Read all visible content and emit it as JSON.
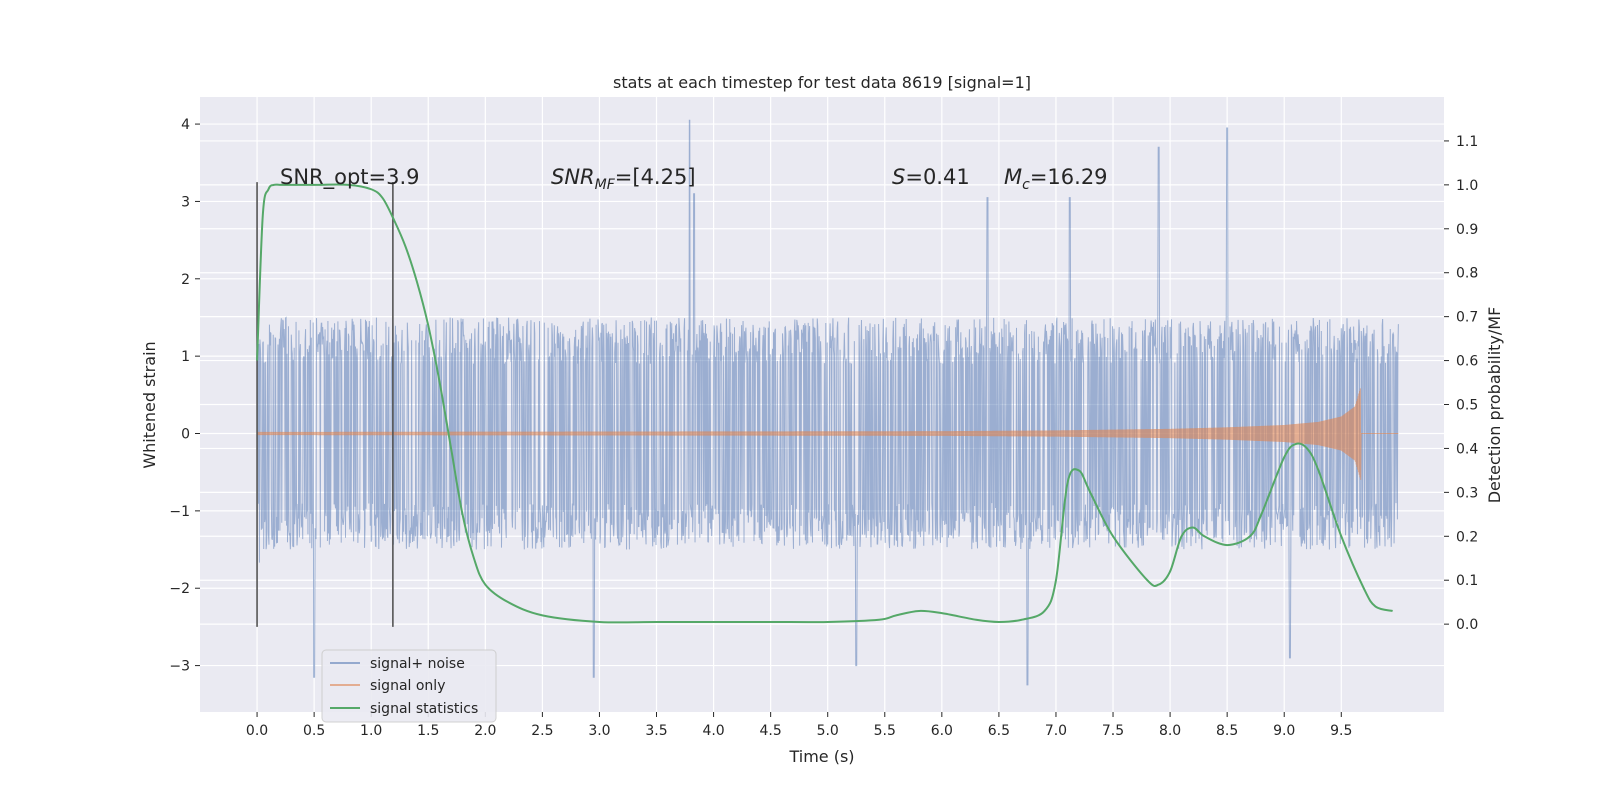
{
  "chart_data": {
    "type": "line",
    "title": "stats at each timestep for test data 8619 [signal=1]",
    "xlabel": "Time (s)",
    "ylabel": "Whitened strain",
    "ylabel_right": "Detection probability/MF",
    "xlim": [
      -0.5,
      10.4
    ],
    "ylim": [
      -3.6,
      4.35
    ],
    "ylim_right": [
      -0.2,
      1.2
    ],
    "x_ticks": [
      "0.0",
      "0.5",
      "1.0",
      "1.5",
      "2.0",
      "2.5",
      "3.0",
      "3.5",
      "4.0",
      "4.5",
      "5.0",
      "5.5",
      "6.0",
      "6.5",
      "7.0",
      "7.5",
      "8.0",
      "8.5",
      "9.0",
      "9.5"
    ],
    "y_ticks": [
      "−3",
      "−2",
      "−1",
      "0",
      "1",
      "2",
      "3",
      "4"
    ],
    "y_ticks_right": [
      "0.0",
      "0.1",
      "0.2",
      "0.3",
      "0.4",
      "0.5",
      "0.6",
      "0.7",
      "0.8",
      "0.9",
      "1.0",
      "1.1"
    ],
    "grid": true,
    "legend_position": "bottom-left",
    "annotations": {
      "snr_opt": "SNR_opt=3.9",
      "snr_mf_base": "SNR",
      "snr_mf_sub": "MF",
      "snr_mf_value": "=[4.25]",
      "s_sym": "S",
      "s_value": "=0.41",
      "mc_base": "M",
      "mc_sub": "c",
      "mc_value": "=16.29"
    },
    "vertical_lines": [
      0.0,
      1.19
    ],
    "series": [
      {
        "name": "signal+ noise",
        "color": "#4c72b0",
        "description_range": [
          0.0,
          10.0
        ],
        "envelope_core": [
          -1.5,
          1.5
        ],
        "peaks": [
          [
            3.79,
            4.05
          ],
          [
            8.5,
            3.95
          ],
          [
            3.83,
            3.1
          ],
          [
            7.9,
            3.7
          ],
          [
            7.12,
            3.05
          ],
          [
            6.4,
            3.05
          ]
        ],
        "troughs": [
          [
            2.95,
            -3.15
          ],
          [
            5.25,
            -3.0
          ],
          [
            6.75,
            -3.25
          ],
          [
            0.5,
            -3.15
          ],
          [
            9.05,
            -2.9
          ]
        ]
      },
      {
        "name": "signal only",
        "color": "#dd8452",
        "x": [
          0.0,
          6.0,
          7.0,
          8.0,
          8.5,
          9.0,
          9.3,
          9.5,
          9.62,
          9.67,
          9.7,
          10.0
        ],
        "amplitude": [
          0.02,
          0.03,
          0.04,
          0.06,
          0.08,
          0.11,
          0.15,
          0.22,
          0.35,
          0.6,
          0.0,
          0.0
        ]
      },
      {
        "name": "signal statistics",
        "color": "#55a868",
        "x": [
          0.0,
          0.05,
          0.1,
          0.15,
          0.2,
          0.3,
          0.5,
          0.8,
          1.0,
          1.1,
          1.2,
          1.3,
          1.4,
          1.5,
          1.6,
          1.7,
          1.8,
          1.9,
          2.0,
          2.2,
          2.5,
          3.0,
          3.5,
          4.0,
          4.5,
          5.0,
          5.45,
          5.6,
          5.8,
          6.0,
          6.3,
          6.5,
          6.7,
          6.9,
          7.0,
          7.1,
          7.2,
          7.3,
          7.5,
          7.8,
          7.9,
          8.0,
          8.1,
          8.2,
          8.3,
          8.5,
          8.7,
          8.8,
          9.0,
          9.1,
          9.2,
          9.3,
          9.5,
          9.7,
          9.8,
          9.95
        ],
        "y": [
          0.6,
          0.93,
          0.99,
          1.0,
          1.0,
          1.0,
          1.0,
          1.0,
          0.99,
          0.97,
          0.92,
          0.86,
          0.78,
          0.68,
          0.55,
          0.4,
          0.25,
          0.15,
          0.09,
          0.05,
          0.02,
          0.005,
          0.005,
          0.005,
          0.005,
          0.005,
          0.01,
          0.02,
          0.03,
          0.025,
          0.01,
          0.005,
          0.01,
          0.03,
          0.1,
          0.32,
          0.35,
          0.3,
          0.2,
          0.1,
          0.09,
          0.12,
          0.2,
          0.22,
          0.2,
          0.18,
          0.2,
          0.25,
          0.38,
          0.41,
          0.4,
          0.35,
          0.2,
          0.08,
          0.04,
          0.03
        ]
      }
    ]
  }
}
